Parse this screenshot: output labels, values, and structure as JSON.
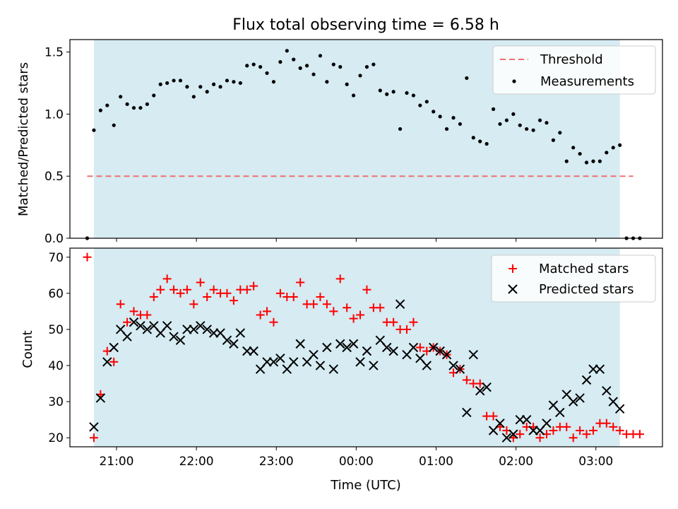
{
  "chart_data": [
    {
      "type": "scatter",
      "title": "Flux total observing time = 6.58 h",
      "xlabel": "",
      "ylabel": "Matched/Predicted stars",
      "xlim": [
        "20:25",
        "03:50"
      ],
      "ylim": [
        0.0,
        1.6
      ],
      "yticks": [
        0.0,
        0.5,
        1.0,
        1.5
      ],
      "ytick_labels": [
        "0.0",
        "0.5",
        "1.0",
        "1.5"
      ],
      "xticks": [
        "21:00",
        "22:00",
        "23:00",
        "00:00",
        "01:00",
        "02:00",
        "03:00"
      ],
      "shaded_span": [
        "20:43",
        "03:18"
      ],
      "legend": "top-right",
      "threshold": {
        "name": "Threshold",
        "value": 0.5,
        "x_range": [
          "20:38",
          "03:28"
        ],
        "color": "#f07070"
      },
      "series": [
        {
          "name": "Measurements",
          "color": "#000000",
          "x": [
            "20:38",
            "20:43",
            "20:48",
            "20:53",
            "20:58",
            "21:03",
            "21:08",
            "21:13",
            "21:18",
            "21:23",
            "21:28",
            "21:33",
            "21:38",
            "21:43",
            "21:48",
            "21:53",
            "21:58",
            "22:03",
            "22:08",
            "22:13",
            "22:18",
            "22:23",
            "22:28",
            "22:33",
            "22:38",
            "22:43",
            "22:48",
            "22:53",
            "22:58",
            "23:03",
            "23:08",
            "23:13",
            "23:18",
            "23:23",
            "23:28",
            "23:33",
            "23:38",
            "23:43",
            "23:48",
            "23:53",
            "23:58",
            "00:03",
            "00:08",
            "00:13",
            "00:18",
            "00:23",
            "00:28",
            "00:33",
            "00:38",
            "00:43",
            "00:48",
            "00:53",
            "00:58",
            "01:03",
            "01:08",
            "01:13",
            "01:18",
            "01:23",
            "01:28",
            "01:33",
            "01:38",
            "01:43",
            "01:48",
            "01:53",
            "01:58",
            "02:03",
            "02:08",
            "02:13",
            "02:18",
            "02:23",
            "02:28",
            "02:33",
            "02:38",
            "02:43",
            "02:48",
            "02:53",
            "02:58",
            "03:03",
            "03:08",
            "03:13",
            "03:18",
            "03:23",
            "03:28",
            "03:33"
          ],
          "values": [
            0.0,
            0.87,
            1.03,
            1.07,
            0.91,
            1.14,
            1.08,
            1.05,
            1.05,
            1.08,
            1.15,
            1.24,
            1.25,
            1.27,
            1.27,
            1.22,
            1.14,
            1.22,
            1.18,
            1.24,
            1.22,
            1.27,
            1.26,
            1.25,
            1.39,
            1.4,
            1.38,
            1.33,
            1.26,
            1.42,
            1.51,
            1.44,
            1.37,
            1.39,
            1.32,
            1.47,
            1.26,
            1.4,
            1.38,
            1.24,
            1.15,
            1.31,
            1.38,
            1.4,
            1.19,
            1.16,
            1.18,
            0.88,
            1.17,
            1.15,
            1.07,
            1.1,
            1.02,
            0.98,
            0.88,
            0.97,
            0.92,
            1.29,
            0.81,
            0.78,
            0.76,
            1.04,
            0.92,
            0.95,
            1.0,
            0.91,
            0.88,
            0.87,
            0.95,
            0.93,
            0.79,
            0.85,
            0.62,
            0.73,
            0.68,
            0.61,
            0.62,
            0.62,
            0.69,
            0.73,
            0.75,
            0.0,
            0.0,
            0.0
          ]
        }
      ]
    },
    {
      "type": "scatter",
      "title": "",
      "xlabel": "Time (UTC)",
      "ylabel": "Count",
      "xlim": [
        "20:25",
        "03:50"
      ],
      "ylim": [
        17.5,
        72.5
      ],
      "yticks": [
        20,
        30,
        40,
        50,
        60,
        70
      ],
      "ytick_labels": [
        "20",
        "30",
        "40",
        "50",
        "60",
        "70"
      ],
      "xticks": [
        "21:00",
        "22:00",
        "23:00",
        "00:00",
        "01:00",
        "02:00",
        "03:00"
      ],
      "xtick_labels": [
        "21:00",
        "22:00",
        "23:00",
        "00:00",
        "01:00",
        "02:00",
        "03:00"
      ],
      "shaded_span": [
        "20:43",
        "03:18"
      ],
      "legend": "top-right",
      "x": [
        "20:38",
        "20:43",
        "20:48",
        "20:53",
        "20:58",
        "21:03",
        "21:08",
        "21:13",
        "21:18",
        "21:23",
        "21:28",
        "21:33",
        "21:38",
        "21:43",
        "21:48",
        "21:53",
        "21:58",
        "22:03",
        "22:08",
        "22:13",
        "22:18",
        "22:23",
        "22:28",
        "22:33",
        "22:38",
        "22:43",
        "22:48",
        "22:53",
        "22:58",
        "23:03",
        "23:08",
        "23:13",
        "23:18",
        "23:23",
        "23:28",
        "23:33",
        "23:38",
        "23:43",
        "23:48",
        "23:53",
        "23:58",
        "00:03",
        "00:08",
        "00:13",
        "00:18",
        "00:23",
        "00:28",
        "00:33",
        "00:38",
        "00:43",
        "00:48",
        "00:53",
        "00:58",
        "01:03",
        "01:08",
        "01:13",
        "01:18",
        "01:23",
        "01:28",
        "01:33",
        "01:38",
        "01:43",
        "01:48",
        "01:53",
        "01:58",
        "02:03",
        "02:08",
        "02:13",
        "02:18",
        "02:23",
        "02:28",
        "02:33",
        "02:38",
        "02:43",
        "02:48",
        "02:53",
        "02:58",
        "03:03",
        "03:08",
        "03:13",
        "03:18",
        "03:23",
        "03:28",
        "03:33"
      ],
      "series": [
        {
          "name": "Matched stars",
          "color": "#ff0000",
          "marker": "+",
          "values": [
            70,
            20,
            32,
            44,
            41,
            57,
            52,
            55,
            54,
            54,
            59,
            61,
            64,
            61,
            60,
            61,
            57,
            63,
            59,
            61,
            60,
            60,
            58,
            61,
            61,
            62,
            54,
            55,
            52,
            60,
            59,
            59,
            63,
            57,
            57,
            59,
            57,
            55,
            64,
            56,
            53,
            54,
            61,
            56,
            56,
            52,
            52,
            50,
            50,
            52,
            45,
            44,
            45,
            44,
            43,
            38,
            39,
            36,
            35,
            35,
            26,
            26,
            23,
            22,
            20,
            21,
            23,
            23,
            20,
            21,
            22,
            23,
            23,
            20,
            22,
            21,
            22,
            24,
            24,
            23,
            22,
            21,
            21,
            21
          ]
        },
        {
          "name": "Predicted stars",
          "color": "#000000",
          "marker": "x",
          "values": [
            null,
            23,
            31,
            41,
            45,
            50,
            48,
            52,
            51,
            50,
            51,
            49,
            51,
            48,
            47,
            50,
            50,
            51,
            50,
            49,
            49,
            47,
            46,
            49,
            44,
            44,
            39,
            41,
            41,
            42,
            39,
            41,
            46,
            41,
            43,
            40,
            45,
            39,
            46,
            45,
            46,
            41,
            44,
            40,
            47,
            45,
            44,
            57,
            43,
            45,
            42,
            40,
            45,
            44,
            43,
            40,
            39,
            27,
            43,
            33,
            34,
            22,
            24,
            20,
            21,
            25,
            25,
            22,
            22,
            24,
            29,
            27,
            32,
            30,
            31,
            36,
            39,
            39,
            33,
            30,
            28,
            null,
            null,
            null
          ]
        }
      ]
    }
  ]
}
